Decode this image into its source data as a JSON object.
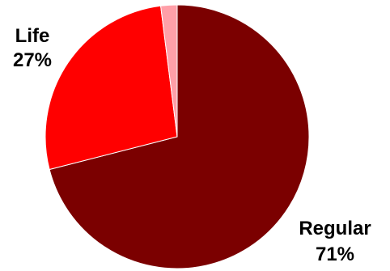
{
  "chart_data": {
    "type": "pie",
    "title": "",
    "slices": [
      {
        "label": "Regular",
        "value": 71,
        "value_label": "71%",
        "color": "#7b0000"
      },
      {
        "label": "Life",
        "value": 27,
        "value_label": "27%",
        "color": "#ff0000"
      },
      {
        "label": "",
        "value": 2,
        "value_label": "",
        "color": "#ff9fa8"
      }
    ],
    "legend": "none",
    "labels": "outside, category name above percentage"
  }
}
